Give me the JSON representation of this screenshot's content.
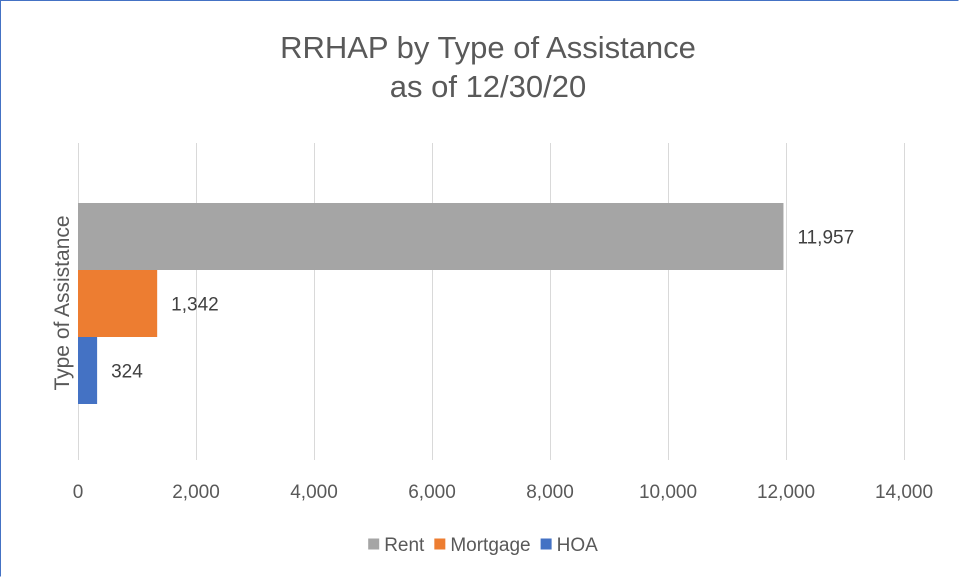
{
  "chart_data": {
    "type": "bar",
    "orientation": "horizontal",
    "title": [
      "RRHAP by Type of Assistance",
      "as of 12/30/20"
    ],
    "ylabel": "Type of Assistance",
    "xlabel": "",
    "xlim": [
      0,
      14000
    ],
    "x_ticks": [
      0,
      2000,
      4000,
      6000,
      8000,
      10000,
      12000,
      14000
    ],
    "x_tick_labels": [
      "0",
      "2,000",
      "4,000",
      "6,000",
      "8,000",
      "10,000",
      "12,000",
      "14,000"
    ],
    "grid": "vertical",
    "legend_position": "bottom",
    "series": [
      {
        "name": "Rent",
        "value": 11957,
        "label": "11,957",
        "color": "#a5a5a5"
      },
      {
        "name": "Mortgage",
        "value": 1342,
        "label": "1,342",
        "color": "#ed7d31"
      },
      {
        "name": "HOA",
        "value": 324,
        "label": "324",
        "color": "#4472c4"
      }
    ]
  }
}
